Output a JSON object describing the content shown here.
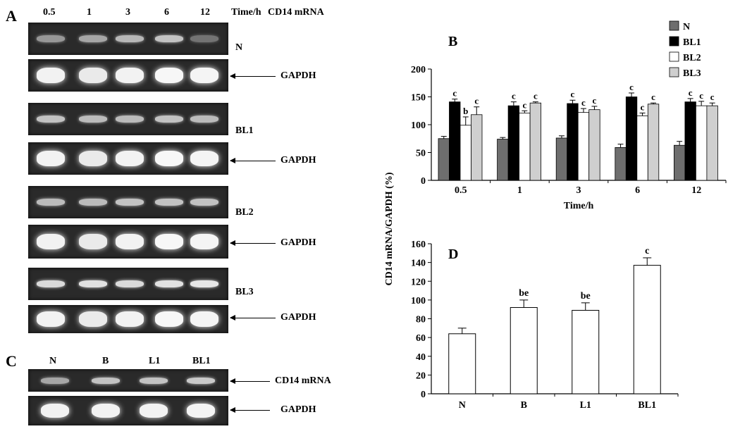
{
  "panel_letters": {
    "a": "A",
    "b": "B",
    "c": "C",
    "d": "D"
  },
  "panelA": {
    "column_labels": [
      "0.5",
      "1",
      "3",
      "6",
      "12"
    ],
    "time_label": "Time/h",
    "title": "CD14 mRNA",
    "gels": [
      {
        "label": "N",
        "gapdh": "GAPDH",
        "band_levels": [
          0.55,
          0.62,
          0.7,
          0.75,
          0.35
        ]
      },
      {
        "label": "BL1",
        "gapdh": "GAPDH",
        "band_levels": [
          0.75,
          0.72,
          0.72,
          0.75,
          0.72
        ]
      },
      {
        "label": "BL2",
        "gapdh": "GAPDH",
        "band_levels": [
          0.72,
          0.72,
          0.75,
          0.75,
          0.75
        ]
      },
      {
        "label": "BL3",
        "gapdh": "GAPDH",
        "band_levels": [
          0.85,
          0.88,
          0.85,
          0.88,
          0.9
        ]
      }
    ]
  },
  "panelC": {
    "column_labels": [
      "N",
      "B",
      "L1",
      "BL1"
    ],
    "cd14_label": "CD14 mRNA",
    "gapdh_label": "GAPDH"
  },
  "colors": {
    "N": "#6e6e6e",
    "BL1": "#000000",
    "BL2": "#ffffff",
    "BL3": "#cfcfcf"
  },
  "chart_data": [
    {
      "type": "bar",
      "panel": "B",
      "categories": [
        "0.5",
        "1",
        "3",
        "6",
        "12"
      ],
      "xlabel": "Time/h",
      "ylabel": "CD14 mRNA/GAPDH (%)",
      "ylim": [
        0,
        200
      ],
      "yticks": [
        "0",
        "50",
        "100",
        "150",
        "200"
      ],
      "legend_position": "top-right",
      "series": [
        {
          "name": "N",
          "values": [
            75,
            74,
            76,
            59,
            63
          ],
          "errors": [
            4,
            3,
            4,
            6,
            7
          ],
          "letters": [
            "",
            "",
            "",
            "",
            ""
          ]
        },
        {
          "name": "BL1",
          "values": [
            141,
            134,
            138,
            150,
            141
          ],
          "errors": [
            5,
            7,
            6,
            7,
            6
          ],
          "letters": [
            "c",
            "c",
            "c",
            "c",
            "c"
          ]
        },
        {
          "name": "BL2",
          "values": [
            99,
            121,
            122,
            116,
            134
          ],
          "errors": [
            15,
            4,
            7,
            5,
            8
          ],
          "letters": [
            "b",
            "c",
            "c",
            "c",
            "c"
          ]
        },
        {
          "name": "BL3",
          "values": [
            118,
            139,
            127,
            137,
            134
          ],
          "errors": [
            14,
            2,
            6,
            2,
            5
          ],
          "letters": [
            "c",
            "c",
            "c",
            "c",
            "c"
          ]
        }
      ]
    },
    {
      "type": "bar",
      "panel": "D",
      "categories": [
        "N",
        "B",
        "L1",
        "BL1"
      ],
      "ylabel": "CD14 mRNA/GAPDH (%)",
      "ylim": [
        0,
        160
      ],
      "yticks": [
        "0",
        "20",
        "40",
        "60",
        "80",
        "100",
        "120",
        "140",
        "160"
      ],
      "values": [
        64,
        92,
        89,
        137
      ],
      "errors": [
        6,
        8,
        8,
        8
      ],
      "letters": [
        "",
        "be",
        "be",
        "c"
      ]
    }
  ]
}
